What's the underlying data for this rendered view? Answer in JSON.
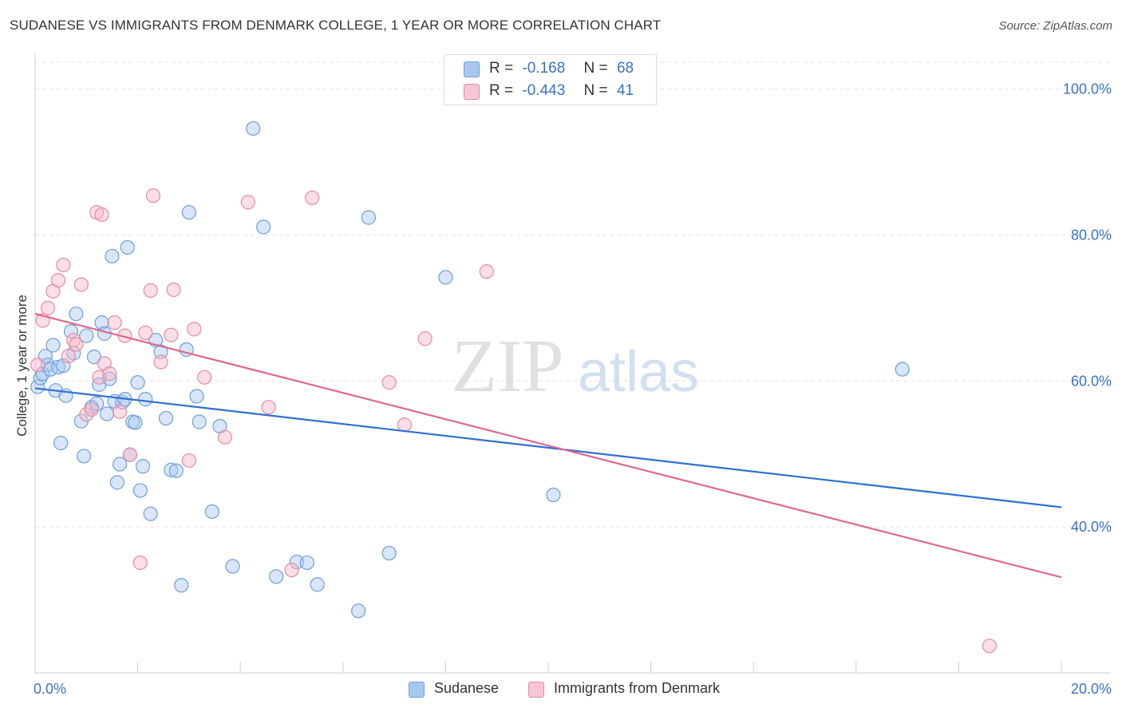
{
  "title": "SUDANESE VS IMMIGRANTS FROM DENMARK COLLEGE, 1 YEAR OR MORE CORRELATION CHART",
  "source": "Source: ZipAtlas.com",
  "watermark": {
    "zip": "ZIP",
    "atlas": "atlas"
  },
  "legend_top": {
    "rows": [
      {
        "r_label": "R =",
        "r_value": "-0.168",
        "n_label": "N =",
        "n_value": "68"
      },
      {
        "r_label": "R =",
        "r_value": "-0.443",
        "n_label": "N =",
        "n_value": "41"
      }
    ]
  },
  "legend_bottom": {
    "items": [
      "Sudanese",
      "Immigrants from Denmark"
    ]
  },
  "colors": {
    "blue_fill": "#a9c8f0",
    "blue_stroke": "#6d9fd9",
    "blue_line": "#2f6fd0",
    "pink_fill": "#f6b5c8",
    "pink_stroke": "#e58aa6",
    "pink_line": "#e0668f",
    "axis_text": "#3a72c8",
    "grid": "#e3e3e3"
  },
  "chart_data": {
    "type": "scatter",
    "title": "SUDANESE VS IMMIGRANTS FROM DENMARK COLLEGE, 1 YEAR OR MORE CORRELATION CHART",
    "xlabel": "",
    "ylabel": "College, 1 year or more",
    "xlim": [
      0,
      20
    ],
    "ylim": [
      20,
      104
    ],
    "x_tick_labels": [
      "0.0%",
      "20.0%"
    ],
    "y_ticks": [
      40,
      60,
      80,
      100
    ],
    "y_tick_labels": [
      "40.0%",
      "60.0%",
      "80.0%",
      "100.0%"
    ],
    "grid": true,
    "series": [
      {
        "name": "Sudanese",
        "r": -0.168,
        "n": 68,
        "trend": {
          "x": [
            0,
            20
          ],
          "y": [
            59.0,
            42.7
          ]
        },
        "points": [
          [
            0.05,
            59.2
          ],
          [
            0.1,
            60.4
          ],
          [
            0.15,
            61.0
          ],
          [
            0.2,
            63.4
          ],
          [
            0.25,
            62.2
          ],
          [
            0.3,
            61.6
          ],
          [
            0.35,
            64.9
          ],
          [
            0.4,
            58.7
          ],
          [
            0.45,
            61.9
          ],
          [
            0.5,
            51.5
          ],
          [
            0.55,
            62.1
          ],
          [
            0.6,
            58.0
          ],
          [
            0.7,
            66.8
          ],
          [
            0.75,
            63.8
          ],
          [
            0.8,
            69.2
          ],
          [
            0.9,
            54.5
          ],
          [
            0.95,
            49.7
          ],
          [
            1.0,
            66.2
          ],
          [
            1.1,
            56.4
          ],
          [
            1.15,
            63.3
          ],
          [
            1.2,
            56.9
          ],
          [
            1.25,
            59.5
          ],
          [
            1.3,
            68.0
          ],
          [
            1.35,
            66.5
          ],
          [
            1.4,
            55.5
          ],
          [
            1.45,
            60.3
          ],
          [
            1.5,
            77.1
          ],
          [
            1.55,
            57.2
          ],
          [
            1.6,
            46.1
          ],
          [
            1.65,
            48.6
          ],
          [
            1.7,
            57.1
          ],
          [
            1.75,
            57.5
          ],
          [
            1.8,
            78.3
          ],
          [
            1.85,
            49.9
          ],
          [
            1.9,
            54.4
          ],
          [
            1.95,
            54.3
          ],
          [
            2.0,
            59.8
          ],
          [
            2.05,
            45.0
          ],
          [
            2.1,
            48.3
          ],
          [
            2.15,
            57.5
          ],
          [
            2.25,
            41.8
          ],
          [
            2.35,
            65.6
          ],
          [
            2.45,
            64.0
          ],
          [
            2.55,
            54.9
          ],
          [
            2.65,
            47.8
          ],
          [
            2.75,
            47.7
          ],
          [
            2.85,
            32.0
          ],
          [
            2.95,
            64.3
          ],
          [
            3.0,
            83.1
          ],
          [
            3.15,
            57.9
          ],
          [
            3.2,
            54.4
          ],
          [
            3.45,
            42.1
          ],
          [
            3.6,
            53.8
          ],
          [
            3.85,
            34.6
          ],
          [
            4.25,
            94.6
          ],
          [
            4.45,
            81.1
          ],
          [
            4.7,
            33.2
          ],
          [
            5.1,
            35.2
          ],
          [
            5.3,
            35.1
          ],
          [
            5.5,
            32.1
          ],
          [
            6.3,
            28.5
          ],
          [
            6.5,
            82.4
          ],
          [
            6.9,
            36.4
          ],
          [
            8.0,
            74.2
          ],
          [
            10.1,
            44.4
          ],
          [
            16.9,
            61.6
          ]
        ]
      },
      {
        "name": "Immigrants from Denmark",
        "r": -0.443,
        "n": 41,
        "trend": {
          "x": [
            0,
            20
          ],
          "y": [
            69.2,
            33.1
          ]
        },
        "points": [
          [
            0.05,
            62.2
          ],
          [
            0.15,
            68.3
          ],
          [
            0.25,
            70.0
          ],
          [
            0.35,
            72.3
          ],
          [
            0.45,
            73.8
          ],
          [
            0.55,
            75.9
          ],
          [
            0.65,
            63.4
          ],
          [
            0.75,
            65.6
          ],
          [
            0.8,
            65.0
          ],
          [
            0.9,
            73.2
          ],
          [
            1.0,
            55.4
          ],
          [
            1.1,
            56.1
          ],
          [
            1.2,
            83.1
          ],
          [
            1.25,
            60.5
          ],
          [
            1.3,
            82.8
          ],
          [
            1.35,
            62.4
          ],
          [
            1.45,
            61.0
          ],
          [
            1.55,
            68.0
          ],
          [
            1.65,
            55.8
          ],
          [
            1.75,
            66.2
          ],
          [
            1.85,
            49.9
          ],
          [
            2.05,
            35.1
          ],
          [
            2.15,
            66.6
          ],
          [
            2.25,
            72.4
          ],
          [
            2.3,
            85.4
          ],
          [
            2.45,
            62.6
          ],
          [
            2.65,
            66.3
          ],
          [
            2.7,
            72.5
          ],
          [
            3.1,
            67.1
          ],
          [
            3.3,
            60.5
          ],
          [
            3.7,
            52.3
          ],
          [
            4.15,
            84.5
          ],
          [
            4.55,
            56.4
          ],
          [
            5.0,
            34.1
          ],
          [
            5.4,
            85.1
          ],
          [
            6.9,
            59.8
          ],
          [
            7.2,
            54.0
          ],
          [
            7.6,
            65.8
          ],
          [
            8.8,
            75.0
          ],
          [
            3.0,
            49.1
          ],
          [
            18.6,
            23.7
          ]
        ]
      }
    ]
  }
}
